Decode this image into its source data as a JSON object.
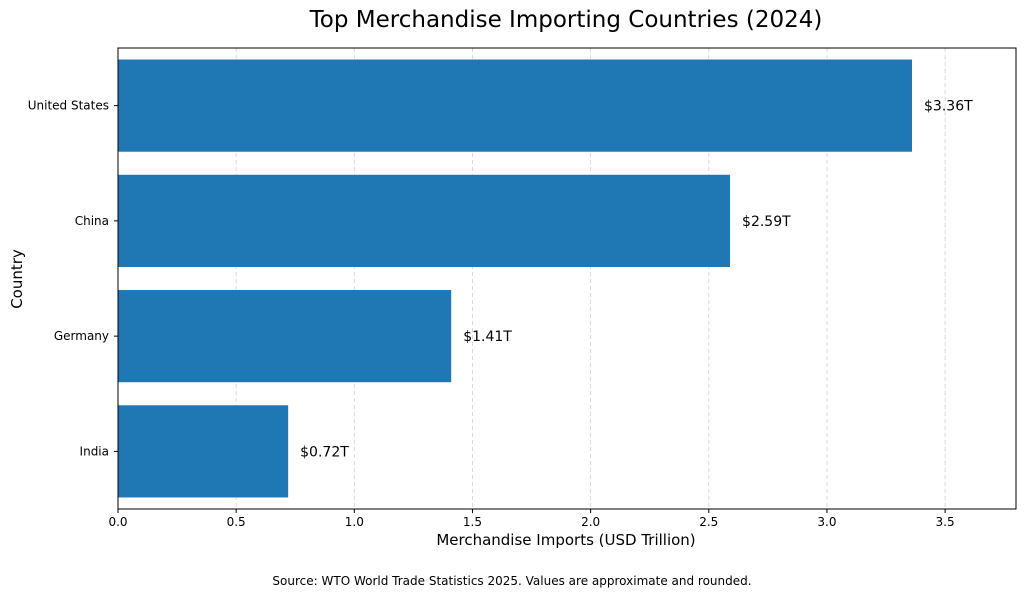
{
  "chart_data": {
    "type": "bar",
    "orientation": "horizontal",
    "title": "Top Merchandise Importing Countries (2024)",
    "xlabel": "Merchandise Imports (USD Trillion)",
    "ylabel": "Country",
    "categories": [
      "United States",
      "China",
      "Germany",
      "India"
    ],
    "values": [
      3.36,
      2.59,
      1.41,
      0.72
    ],
    "value_labels": [
      "$3.36T",
      "$2.59T",
      "$1.41T",
      "$0.72T"
    ],
    "xlim": [
      0,
      3.8
    ],
    "xticks": [
      "0.0",
      "0.5",
      "1.0",
      "1.5",
      "2.0",
      "2.5",
      "3.0",
      "3.5"
    ],
    "grid": "x-axis dashed",
    "bar_color": "#1f77b4",
    "footnote": "Source: WTO World Trade Statistics 2025. Values are approximate and rounded."
  }
}
